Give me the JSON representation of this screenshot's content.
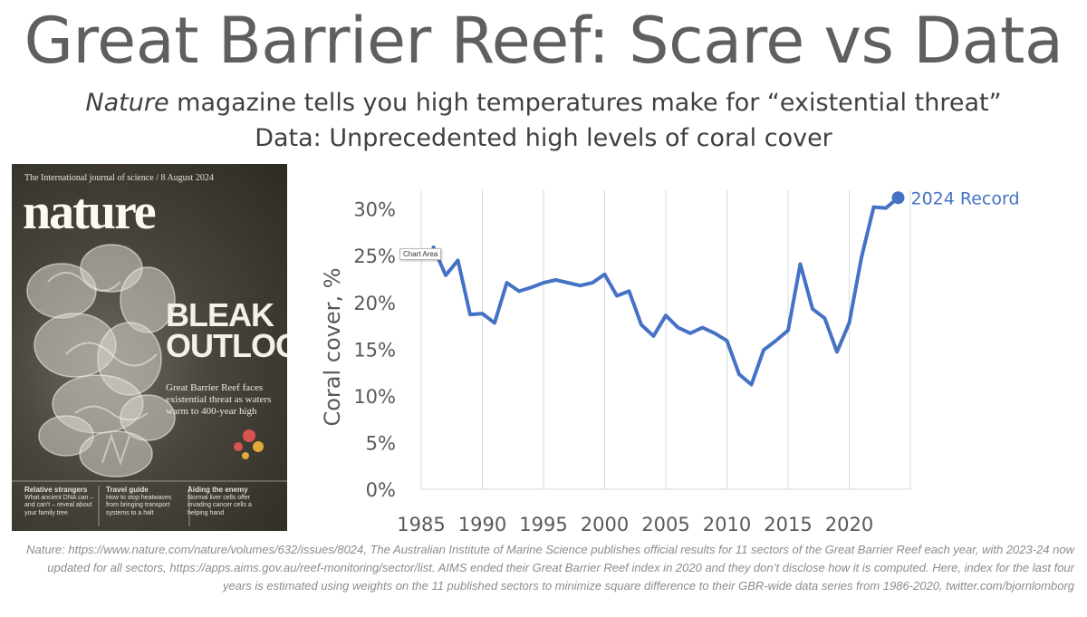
{
  "header": {
    "title": "Great Barrier Reef: Scare vs Data",
    "subtitle_italic": "Nature",
    "subtitle_rest": " magazine tells you high temperatures make for “existential threat”",
    "subtitle2": "Data: Unprecedented high levels of coral cover"
  },
  "cover": {
    "top_line": "The International journal of science / 8 August 2024",
    "masthead": "nature",
    "headline_1": "BLEAK",
    "headline_2": "OUTLOOK",
    "strapline": "Great Barrier Reef faces existential threat as waters warm to 400-year high",
    "foot": [
      {
        "title": "Relative strangers",
        "text": "What ancient DNA can – and can't – reveal about your family tree"
      },
      {
        "title": "Travel guide",
        "text": "How to stop heatwaves from bringing transport systems to a halt"
      },
      {
        "title": "Aiding the enemy",
        "text": "Normal liver cells offer invading cancer cells a helping hand"
      }
    ]
  },
  "tooltip": "Chart Area",
  "chart_data": {
    "type": "line",
    "ylabel": "Coral cover, %",
    "xlim": [
      1985,
      2025
    ],
    "ylim": [
      0,
      32
    ],
    "x_ticks": [
      1985,
      1990,
      1995,
      2000,
      2005,
      2010,
      2015,
      2020
    ],
    "y_ticks": [
      0,
      5,
      10,
      15,
      20,
      25,
      30
    ],
    "y_tick_labels": [
      "0%",
      "5%",
      "10%",
      "15%",
      "20%",
      "25%",
      "30%"
    ],
    "grid": "vertical",
    "series": [
      {
        "color": "#4472c4",
        "x": [
          1986,
          1987,
          1988,
          1989,
          1990,
          1991,
          1992,
          1993,
          1994,
          1995,
          1996,
          1997,
          1998,
          1999,
          2000,
          2001,
          2002,
          2003,
          2004,
          2005,
          2006,
          2007,
          2008,
          2009,
          2010,
          2011,
          2012,
          2013,
          2014,
          2015,
          2016,
          2017,
          2018,
          2019,
          2020,
          2021,
          2022,
          2023,
          2024
        ],
        "values": [
          25.9,
          22.9,
          24.5,
          18.7,
          18.8,
          17.8,
          22.1,
          21.2,
          21.6,
          22.1,
          22.4,
          22.1,
          21.8,
          22.1,
          23.0,
          20.7,
          21.2,
          17.6,
          16.4,
          18.6,
          17.3,
          16.7,
          17.3,
          16.7,
          15.9,
          12.3,
          11.2,
          14.9,
          15.9,
          17.0,
          24.1,
          19.3,
          18.3,
          14.7,
          17.8,
          24.8,
          30.2,
          30.1,
          31.2
        ]
      }
    ],
    "annotation": "2024 Record"
  },
  "footnote": "Nature: https://www.nature.com/nature/volumes/632/issues/8024, The Australian Institute of Marine Science publishes official results for 11 sectors of the Great Barrier Reef each year, with 2023-24 now updated for all sectors, https://apps.aims.gov.au/reef-monitoring/sector/list. AIMS ended their Great Barrier Reef index in 2020 and they don’t disclose how it is computed. Here, index for the last four years is estimated using weights on the 11 published sectors to minimize square difference to their GBR-wide data series from 1986-2020, twitter.com/bjornlomborg"
}
